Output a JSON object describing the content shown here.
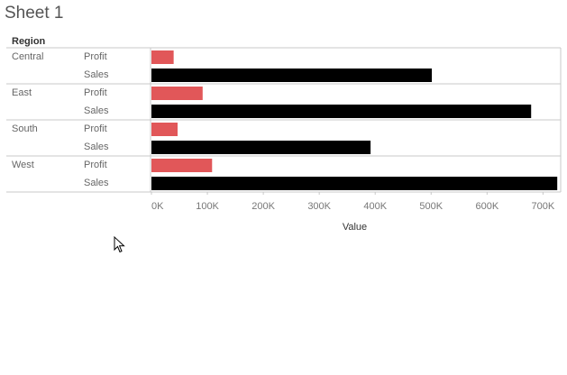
{
  "sheet": {
    "title": "Sheet 1"
  },
  "table": {
    "row_header": "Region"
  },
  "chart_data": {
    "type": "bar",
    "orientation": "horizontal",
    "regions": [
      "Central",
      "East",
      "South",
      "West"
    ],
    "measures": [
      "Profit",
      "Sales"
    ],
    "series": [
      {
        "name": "Profit",
        "values": [
          39706,
          91523,
          46749,
          108418
        ]
      },
      {
        "name": "Sales",
        "values": [
          501240,
          678781,
          391722,
          725458
        ]
      }
    ],
    "xlabel": "Value",
    "xlim": [
      0,
      730000
    ],
    "x_ticks": [
      0,
      100000,
      200000,
      300000,
      400000,
      500000,
      600000,
      700000
    ],
    "x_tick_labels": [
      "0K",
      "100K",
      "200K",
      "300K",
      "400K",
      "500K",
      "600K",
      "700K"
    ],
    "colors": {
      "Profit": "#e15759",
      "Sales": "#000000"
    },
    "grid": false
  }
}
